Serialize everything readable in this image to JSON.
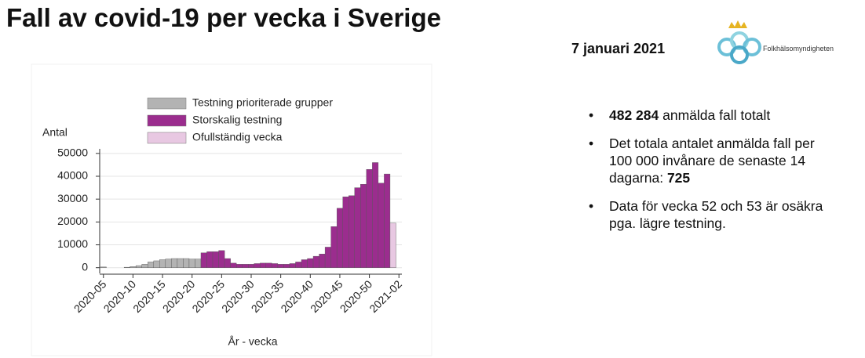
{
  "header": {
    "title": "Fall av covid-19 per vecka i Sverige",
    "date": "7 januari 2021",
    "logo": "Folkhälsomyndigheten"
  },
  "bullets": [
    [
      {
        "text": "482 284",
        "bold": true
      },
      {
        "text": " anmälda fall totalt",
        "bold": false
      }
    ],
    [
      {
        "text": "Det totala antalet anmälda fall per 100 000 invånare de senaste 14 dagarna: ",
        "bold": false
      },
      {
        "text": "725",
        "bold": true
      }
    ],
    [
      {
        "text": "Data för vecka 52 och 53 är osäkra pga. lägre testning.",
        "bold": false
      }
    ]
  ],
  "chart_data": {
    "type": "bar",
    "ylabel": "Antal",
    "xlabel": "År - vecka",
    "categories": [
      "2020-05",
      null,
      null,
      null,
      null,
      "2020-10",
      null,
      null,
      null,
      null,
      "2020-15",
      null,
      null,
      null,
      null,
      "2020-20",
      null,
      null,
      null,
      null,
      "2020-25",
      null,
      null,
      null,
      null,
      "2020-30",
      null,
      null,
      null,
      null,
      "2020-35",
      null,
      null,
      null,
      null,
      "2020-40",
      null,
      null,
      null,
      null,
      "2020-45",
      null,
      null,
      null,
      null,
      "2020-50",
      null,
      null,
      null,
      null,
      "2021-02"
    ],
    "series": [
      {
        "name": "Testning prioriterade grupper",
        "color": "#b3b3b3",
        "values": [
          300,
          null,
          null,
          null,
          200,
          500,
          900,
          1500,
          2500,
          3000,
          3500,
          3800,
          4000,
          4000,
          4000,
          3800,
          3800,
          null,
          null,
          null,
          null,
          null,
          null,
          null,
          null,
          null,
          null,
          null,
          null,
          null,
          null,
          null,
          null,
          null,
          null,
          null,
          null,
          null,
          null,
          null,
          null,
          null,
          null,
          null,
          null,
          null,
          null,
          null,
          null,
          null,
          null
        ]
      },
      {
        "name": "Storskalig testning",
        "color": "#9b2d8e",
        "values": [
          null,
          null,
          null,
          null,
          null,
          null,
          null,
          null,
          null,
          null,
          null,
          null,
          null,
          null,
          null,
          null,
          null,
          6500,
          7000,
          7000,
          7500,
          4000,
          2000,
          1500,
          1500,
          1500,
          1800,
          2000,
          2000,
          1800,
          1500,
          1500,
          1800,
          2500,
          3500,
          4000,
          5000,
          6000,
          9000,
          18000,
          26000,
          31000,
          31500,
          35000,
          36500,
          43000,
          46000,
          37000,
          41000,
          null,
          null
        ]
      },
      {
        "name": "Ofullständig vecka",
        "color": "#e8c8e2",
        "values": [
          null,
          null,
          null,
          null,
          null,
          null,
          null,
          null,
          null,
          null,
          null,
          null,
          null,
          null,
          null,
          null,
          null,
          null,
          null,
          null,
          null,
          null,
          null,
          null,
          null,
          null,
          null,
          null,
          null,
          null,
          null,
          null,
          null,
          null,
          null,
          null,
          null,
          null,
          null,
          null,
          null,
          null,
          null,
          null,
          null,
          null,
          null,
          null,
          null,
          19500,
          null
        ]
      }
    ],
    "ylim": [
      -2500,
      52000
    ],
    "yticks": [
      0,
      10000,
      20000,
      30000,
      40000,
      50000
    ],
    "grid": true
  }
}
